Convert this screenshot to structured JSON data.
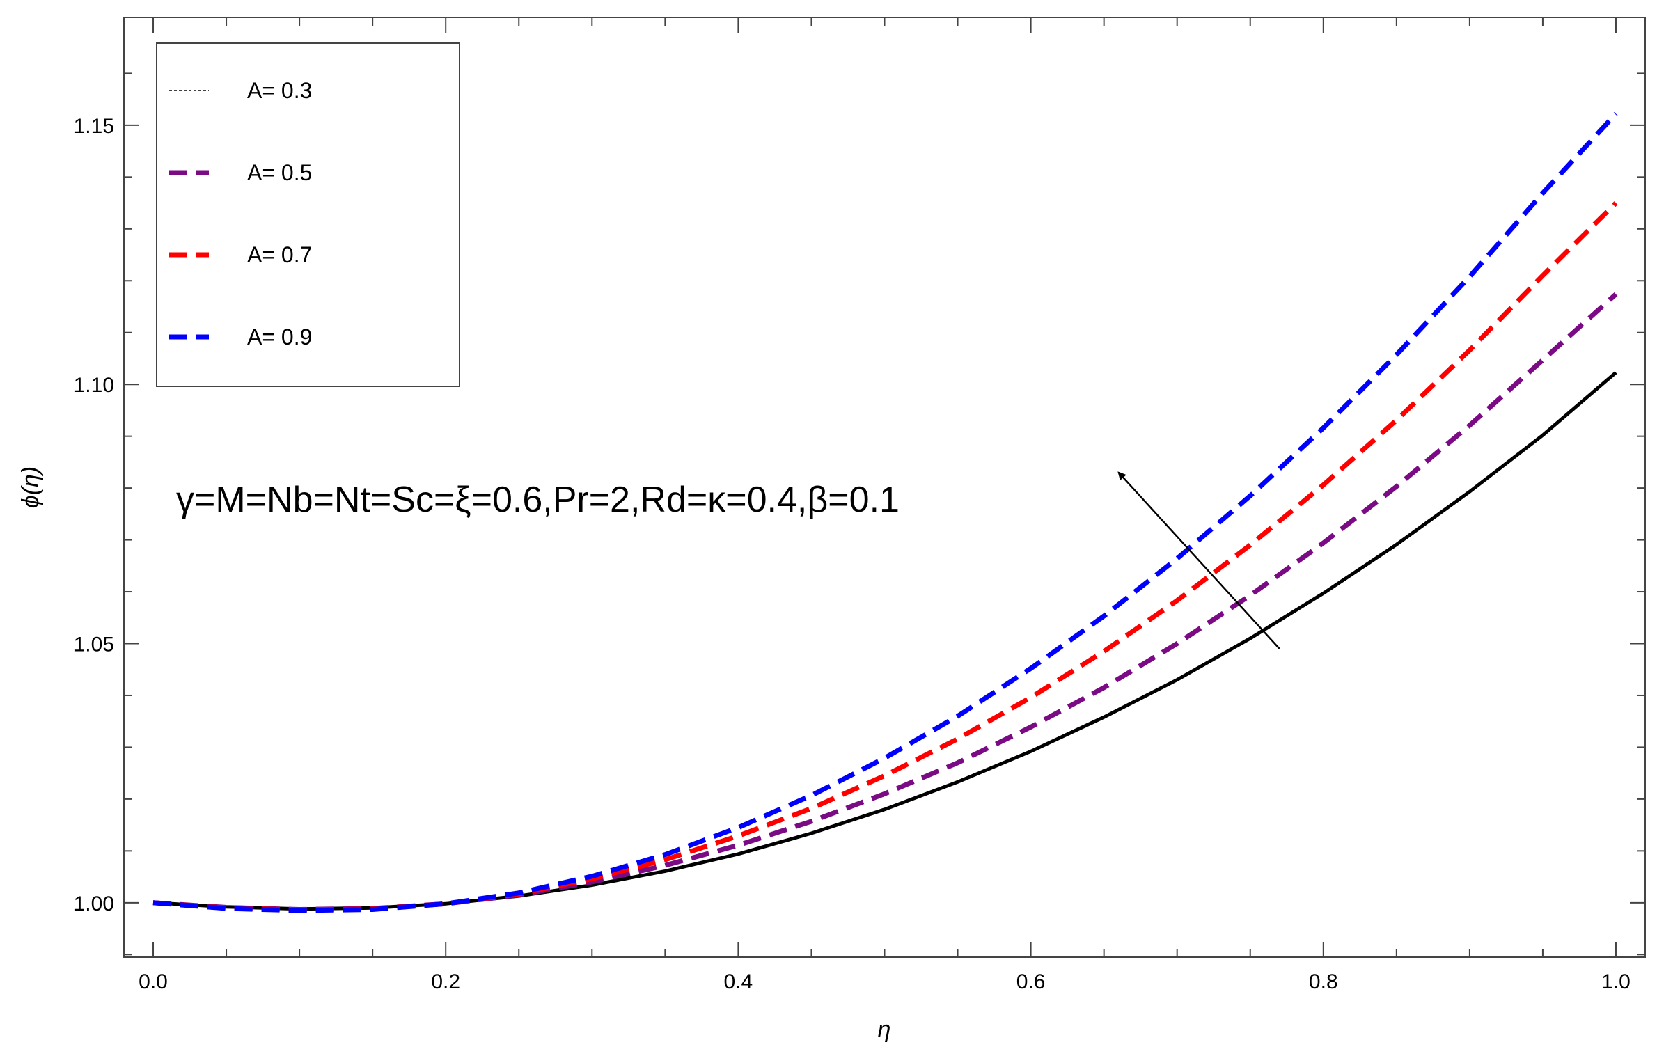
{
  "chart_data": {
    "type": "line",
    "xlabel": "η",
    "ylabel": "ϕ(η)",
    "xlim": [
      -0.02,
      1.02
    ],
    "ylim": [
      0.9895,
      1.1708
    ],
    "grid": false,
    "legend_position": "top-left",
    "x_ticks": [
      {
        "value": 0.0,
        "label": "0.0"
      },
      {
        "value": 0.2,
        "label": "0.2"
      },
      {
        "value": 0.4,
        "label": "0.4"
      },
      {
        "value": 0.6,
        "label": "0.6"
      },
      {
        "value": 0.8,
        "label": "0.8"
      },
      {
        "value": 1.0,
        "label": "1.0"
      }
    ],
    "y_ticks": [
      {
        "value": 1.0,
        "label": "1.00"
      },
      {
        "value": 1.05,
        "label": "1.05"
      },
      {
        "value": 1.1,
        "label": "1.10"
      },
      {
        "value": 1.15,
        "label": "1.15"
      }
    ],
    "x": [
      0.0,
      0.05,
      0.1,
      0.15,
      0.2,
      0.25,
      0.3,
      0.35,
      0.4,
      0.45,
      0.5,
      0.55,
      0.6,
      0.65,
      0.7,
      0.75,
      0.8,
      0.85,
      0.9,
      0.95,
      1.0
    ],
    "series": [
      {
        "name": "A= 0.3",
        "color": "#000000",
        "dash": "solid",
        "values": [
          1.0,
          0.9992,
          0.9988,
          0.999,
          0.9998,
          1.0013,
          1.0034,
          1.0061,
          1.0094,
          1.0134,
          1.018,
          1.0233,
          1.0292,
          1.0358,
          1.043,
          1.051,
          1.0597,
          1.0691,
          1.0793,
          1.0902,
          1.1023
        ]
      },
      {
        "name": "A= 0.5",
        "color": "#7B0A85",
        "dash": "dashed",
        "values": [
          1.0,
          0.9991,
          0.9987,
          0.9989,
          0.9998,
          1.0015,
          1.004,
          1.0072,
          1.0111,
          1.0157,
          1.021,
          1.027,
          1.0339,
          1.0415,
          1.05,
          1.0593,
          1.0694,
          1.0803,
          1.0921,
          1.1047,
          1.1174
        ]
      },
      {
        "name": "A= 0.7",
        "color": "#FF0000",
        "dash": "dashed",
        "values": [
          1.0,
          0.999,
          0.9986,
          0.9988,
          0.9998,
          1.0017,
          1.0046,
          1.0083,
          1.0129,
          1.0182,
          1.0245,
          1.0316,
          1.0396,
          1.0485,
          1.0583,
          1.069,
          1.0806,
          1.0931,
          1.1066,
          1.121,
          1.135
        ]
      },
      {
        "name": "A= 0.9",
        "color": "#0000FF",
        "dash": "dashed",
        "values": [
          1.0,
          0.9989,
          0.9985,
          0.9987,
          0.9998,
          1.0019,
          1.0051,
          1.0093,
          1.0145,
          1.0207,
          1.0279,
          1.036,
          1.0452,
          1.0553,
          1.0664,
          1.0785,
          1.0916,
          1.1057,
          1.1208,
          1.1369,
          1.1522
        ]
      }
    ],
    "annotation_text": "γ=M=Nb=Nt=Sc=ξ=0.6,Pr=2,Rd=κ=0.4,β=0.1",
    "arrow": {
      "from": [
        0.77,
        1.049
      ],
      "to": [
        0.66,
        1.083
      ]
    }
  }
}
